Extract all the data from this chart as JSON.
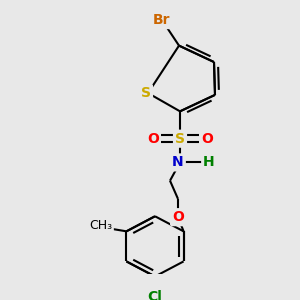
{
  "background_color": "#e8e8e8",
  "figsize": [
    3.0,
    3.0
  ],
  "dpi": 100,
  "colors": {
    "Br": "#cc6600",
    "S": "#ccaa00",
    "O": "#ff0000",
    "N": "#0000cc",
    "H": "#008000",
    "Cl": "#008000",
    "C": "#000000",
    "bond": "#000000"
  }
}
